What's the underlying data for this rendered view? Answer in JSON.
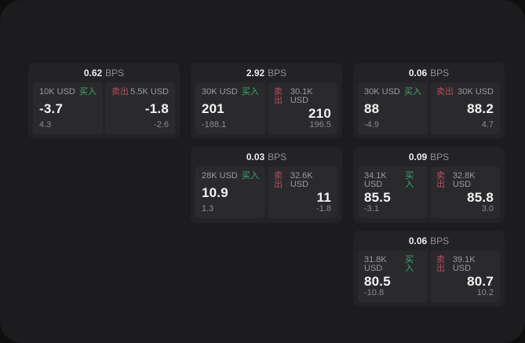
{
  "theme": {
    "backdrop": "#0f0f10",
    "page_bg": "#1c1c1e",
    "card_bg": "#232325",
    "panel_bg": "#2a2a2d",
    "buy_color": "#3ea86f",
    "sell_color": "#b84d5f",
    "price_color": "#f3f3f4",
    "muted_color": "#9a9a9f"
  },
  "labels": {
    "buy": "买入",
    "sell": "卖出",
    "bps": "BPS"
  },
  "cards": [
    {
      "grid": {
        "col": 1,
        "row": 1
      },
      "bps": "0.62",
      "buy": {
        "amount": "10K USD",
        "price": "-3.7",
        "change": "4.3"
      },
      "sell": {
        "amount": "5.5K USD",
        "price": "-1.8",
        "change": "-2.6"
      }
    },
    {
      "grid": {
        "col": 2,
        "row": 1
      },
      "bps": "2.92",
      "buy": {
        "amount": "30K USD",
        "price": "201",
        "change": "-188.1"
      },
      "sell": {
        "amount": "30.1K USD",
        "price": "210",
        "change": "196.5"
      }
    },
    {
      "grid": {
        "col": 3,
        "row": 1
      },
      "bps": "0.06",
      "buy": {
        "amount": "30K USD",
        "price": "88",
        "change": "-4.9"
      },
      "sell": {
        "amount": "30K USD",
        "price": "88.2",
        "change": "4.7"
      }
    },
    {
      "grid": {
        "col": 2,
        "row": 2
      },
      "bps": "0.03",
      "buy": {
        "amount": "28K USD",
        "price": "10.9",
        "change": "1.3"
      },
      "sell": {
        "amount": "32.6K USD",
        "price": "11",
        "change": "-1.8"
      }
    },
    {
      "grid": {
        "col": 3,
        "row": 2
      },
      "bps": "0.09",
      "buy": {
        "amount": "34.1K USD",
        "price": "85.5",
        "change": "-3.1"
      },
      "sell": {
        "amount": "32.8K USD",
        "price": "85.8",
        "change": "3.0"
      }
    },
    {
      "grid": {
        "col": 3,
        "row": 3
      },
      "bps": "0.06",
      "buy": {
        "amount": "31.8K USD",
        "price": "80.5",
        "change": "-10.8"
      },
      "sell": {
        "amount": "39.1K USD",
        "price": "80.7",
        "change": "10.2"
      }
    }
  ]
}
